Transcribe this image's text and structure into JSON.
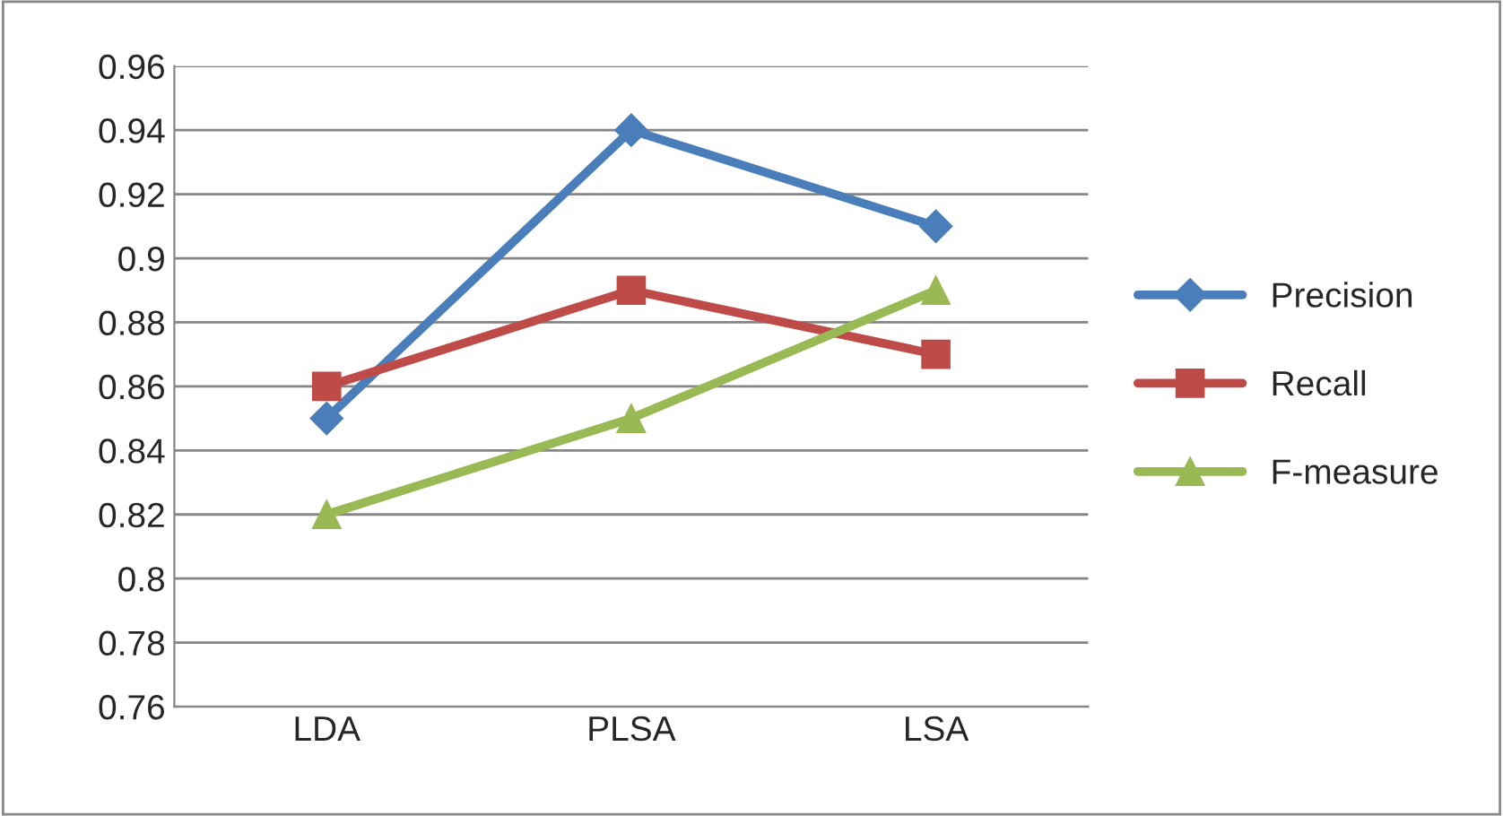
{
  "chart_data": {
    "type": "line",
    "categories": [
      "LDA",
      "PLSA",
      "LSA"
    ],
    "series": [
      {
        "name": "Precision",
        "color": "#4a7ebb",
        "marker": "diamond",
        "values": [
          0.85,
          0.94,
          0.91
        ]
      },
      {
        "name": "Recall",
        "color": "#be4b48",
        "marker": "square",
        "values": [
          0.86,
          0.89,
          0.87
        ]
      },
      {
        "name": "F-measure",
        "color": "#98b954",
        "marker": "triangle",
        "values": [
          0.82,
          0.85,
          0.89
        ]
      }
    ],
    "ylim": [
      0.76,
      0.96
    ],
    "yticks": [
      0.76,
      0.78,
      0.8,
      0.82,
      0.84,
      0.86,
      0.88,
      0.9,
      0.92,
      0.94,
      0.96
    ],
    "grid": "y",
    "legend": "right",
    "line_style": "solid"
  }
}
